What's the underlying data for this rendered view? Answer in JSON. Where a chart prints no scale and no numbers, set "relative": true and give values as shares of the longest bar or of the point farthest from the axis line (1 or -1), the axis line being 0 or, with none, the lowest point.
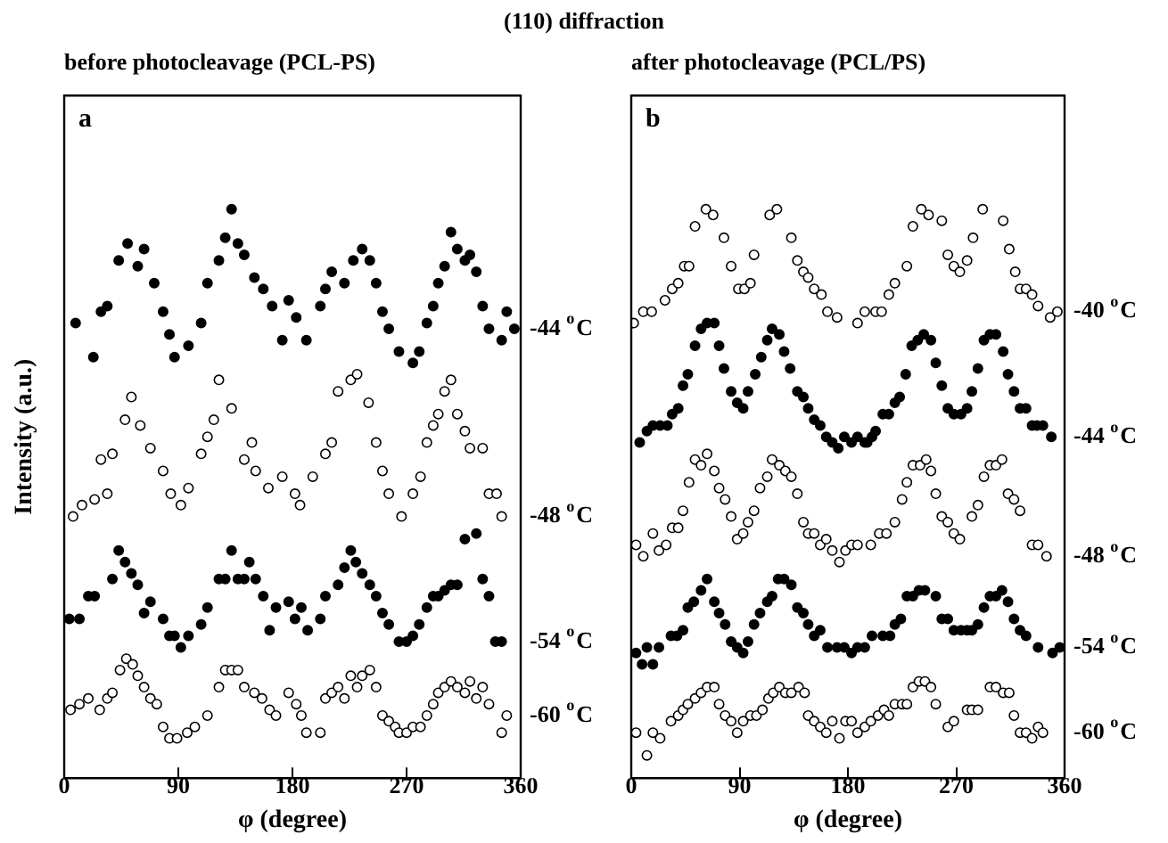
{
  "chart_data": [
    {
      "type": "scatter",
      "title": "(110) diffraction",
      "subtitle": "before photocleavage (PCL-PS)",
      "xlabel": "φ (degree)",
      "ylabel": "Intensity (a.u.)",
      "annotations": [
        "a"
      ],
      "relative": true,
      "xlim": [
        0,
        360
      ],
      "xticks": [
        0,
        90,
        180,
        270,
        360
      ],
      "series": [
        {
          "name": "-44 $^{o}$C",
          "color": "#000000",
          "marker": "circle",
          "x": [
            9,
            23,
            29,
            34,
            43,
            50,
            58,
            63,
            71,
            78,
            83,
            87,
            98,
            108,
            113,
            122,
            127,
            132,
            137,
            142,
            150,
            157,
            164,
            172,
            177,
            183,
            191,
            202,
            206,
            211,
            221,
            228,
            235,
            241,
            246,
            251,
            256,
            264,
            275,
            280,
            286,
            291,
            295,
            300,
            305,
            310,
            316,
            320,
            325,
            330,
            335,
            345,
            349,
            355
          ],
          "values": [
            0.8,
            0.74,
            0.82,
            0.83,
            0.91,
            0.94,
            0.9,
            0.93,
            0.87,
            0.82,
            0.78,
            0.74,
            0.76,
            0.8,
            0.87,
            0.91,
            0.95,
            1.0,
            0.94,
            0.92,
            0.88,
            0.86,
            0.83,
            0.77,
            0.84,
            0.81,
            0.77,
            0.83,
            0.86,
            0.89,
            0.87,
            0.91,
            0.93,
            0.91,
            0.87,
            0.82,
            0.79,
            0.75,
            0.73,
            0.75,
            0.8,
            0.83,
            0.87,
            0.9,
            0.96,
            0.93,
            0.91,
            0.92,
            0.89,
            0.83,
            0.79,
            0.77,
            0.82,
            0.79
          ]
        },
        {
          "name": "-48 $^{o}$C",
          "color": "#000000",
          "marker": "circle-open",
          "x": [
            7,
            14,
            24,
            29,
            34,
            38,
            48,
            53,
            60,
            68,
            78,
            84,
            92,
            98,
            108,
            113,
            118,
            122,
            132,
            142,
            148,
            151,
            161,
            172,
            182,
            186,
            196,
            206,
            211,
            216,
            226,
            231,
            240,
            246,
            251,
            256,
            266,
            275,
            281,
            286,
            291,
            295,
            300,
            305,
            310,
            316,
            320,
            330,
            335,
            341,
            345
          ],
          "values": [
            0.46,
            0.48,
            0.49,
            0.56,
            0.5,
            0.57,
            0.63,
            0.67,
            0.62,
            0.58,
            0.54,
            0.5,
            0.48,
            0.51,
            0.57,
            0.6,
            0.63,
            0.7,
            0.65,
            0.56,
            0.59,
            0.54,
            0.51,
            0.53,
            0.5,
            0.48,
            0.53,
            0.57,
            0.59,
            0.68,
            0.7,
            0.71,
            0.66,
            0.59,
            0.54,
            0.5,
            0.46,
            0.5,
            0.53,
            0.59,
            0.62,
            0.64,
            0.68,
            0.7,
            0.64,
            0.61,
            0.58,
            0.58,
            0.5,
            0.5,
            0.46
          ]
        },
        {
          "name": "-54 $^{o}$C",
          "color": "#000000",
          "marker": "circle",
          "x": [
            4,
            12,
            19,
            24,
            38,
            43,
            48,
            53,
            58,
            63,
            68,
            78,
            83,
            87,
            92,
            98,
            108,
            113,
            122,
            127,
            132,
            137,
            142,
            146,
            151,
            157,
            162,
            167,
            177,
            182,
            187,
            192,
            202,
            206,
            216,
            221,
            226,
            230,
            235,
            241,
            246,
            251,
            256,
            264,
            270,
            275,
            280,
            286,
            291,
            295,
            300,
            305,
            310,
            316,
            325,
            330,
            335,
            340,
            345
          ],
          "values": [
            0.28,
            0.28,
            0.32,
            0.32,
            0.35,
            0.4,
            0.38,
            0.36,
            0.34,
            0.29,
            0.31,
            0.28,
            0.25,
            0.25,
            0.23,
            0.25,
            0.27,
            0.3,
            0.35,
            0.35,
            0.4,
            0.35,
            0.35,
            0.38,
            0.35,
            0.32,
            0.26,
            0.3,
            0.31,
            0.28,
            0.3,
            0.26,
            0.28,
            0.32,
            0.34,
            0.37,
            0.4,
            0.38,
            0.36,
            0.34,
            0.32,
            0.29,
            0.27,
            0.24,
            0.24,
            0.25,
            0.27,
            0.3,
            0.32,
            0.32,
            0.33,
            0.34,
            0.34,
            0.42,
            0.43,
            0.35,
            0.32,
            0.24,
            0.24
          ]
        },
        {
          "name": "-60 $^{o}$C",
          "color": "#000000",
          "marker": "circle-open",
          "x": [
            5,
            12,
            19,
            28,
            34,
            38,
            44,
            49,
            54,
            58,
            63,
            68,
            73,
            78,
            83,
            89,
            97,
            103,
            113,
            122,
            127,
            132,
            137,
            142,
            150,
            156,
            162,
            167,
            177,
            183,
            187,
            191,
            202,
            206,
            211,
            216,
            221,
            226,
            231,
            235,
            241,
            246,
            251,
            256,
            261,
            264,
            270,
            275,
            281,
            286,
            291,
            295,
            300,
            305,
            310,
            316,
            320,
            325,
            330,
            335,
            345,
            349
          ],
          "values": [
            0.12,
            0.13,
            0.14,
            0.12,
            0.14,
            0.15,
            0.19,
            0.21,
            0.2,
            0.18,
            0.16,
            0.14,
            0.13,
            0.09,
            0.07,
            0.07,
            0.08,
            0.09,
            0.11,
            0.16,
            0.19,
            0.19,
            0.19,
            0.16,
            0.15,
            0.14,
            0.12,
            0.11,
            0.15,
            0.13,
            0.11,
            0.08,
            0.08,
            0.14,
            0.15,
            0.16,
            0.14,
            0.18,
            0.16,
            0.18,
            0.19,
            0.16,
            0.11,
            0.1,
            0.09,
            0.08,
            0.08,
            0.09,
            0.09,
            0.11,
            0.13,
            0.15,
            0.16,
            0.17,
            0.16,
            0.15,
            0.17,
            0.14,
            0.16,
            0.13,
            0.08,
            0.11
          ]
        }
      ]
    },
    {
      "type": "scatter",
      "subtitle": "after photocleavage (PCL/PS)",
      "xlabel": "φ (degree)",
      "annotations": [
        "b"
      ],
      "relative": true,
      "xlim": [
        0,
        360
      ],
      "xticks": [
        0,
        90,
        180,
        270,
        360
      ],
      "series": [
        {
          "name": "-40 $^{o}$C",
          "color": "#000000",
          "marker": "circle-open",
          "x": [
            2,
            10,
            17,
            28,
            34,
            39,
            44,
            48,
            53,
            62,
            68,
            77,
            83,
            89,
            94,
            99,
            102,
            115,
            121,
            133,
            138,
            143,
            147,
            152,
            158,
            163,
            171,
            188,
            194,
            203,
            208,
            214,
            219,
            229,
            234,
            241,
            247,
            258,
            263,
            268,
            273,
            279,
            284,
            292,
            309,
            314,
            319,
            323,
            328,
            333,
            338,
            348,
            354
          ],
          "values": [
            0.8,
            0.82,
            0.82,
            0.84,
            0.86,
            0.87,
            0.9,
            0.9,
            0.97,
            1.0,
            0.99,
            0.95,
            0.9,
            0.86,
            0.86,
            0.87,
            0.92,
            0.99,
            1.0,
            0.95,
            0.91,
            0.89,
            0.88,
            0.86,
            0.85,
            0.82,
            0.81,
            0.8,
            0.82,
            0.82,
            0.82,
            0.85,
            0.87,
            0.9,
            0.97,
            1.0,
            0.99,
            0.98,
            0.92,
            0.9,
            0.89,
            0.91,
            0.95,
            1.0,
            0.98,
            0.93,
            0.89,
            0.86,
            0.86,
            0.85,
            0.83,
            0.81,
            0.82
          ]
        },
        {
          "name": "-44 $^{o}$C",
          "color": "#000000",
          "marker": "circle",
          "x": [
            7,
            13,
            18,
            24,
            30,
            34,
            39,
            43,
            47,
            53,
            58,
            63,
            69,
            73,
            77,
            83,
            88,
            93,
            97,
            103,
            108,
            113,
            117,
            123,
            127,
            132,
            138,
            143,
            147,
            152,
            157,
            162,
            167,
            172,
            177,
            183,
            188,
            194,
            196,
            200,
            203,
            209,
            214,
            219,
            223,
            228,
            233,
            238,
            243,
            249,
            253,
            258,
            263,
            268,
            274,
            279,
            283,
            288,
            293,
            298,
            303,
            309,
            313,
            318,
            323,
            328,
            333,
            337,
            342,
            349
          ],
          "values": [
            0.59,
            0.61,
            0.62,
            0.62,
            0.62,
            0.64,
            0.65,
            0.69,
            0.71,
            0.76,
            0.79,
            0.8,
            0.8,
            0.76,
            0.72,
            0.68,
            0.66,
            0.65,
            0.68,
            0.71,
            0.74,
            0.77,
            0.79,
            0.78,
            0.75,
            0.72,
            0.68,
            0.67,
            0.65,
            0.63,
            0.62,
            0.6,
            0.59,
            0.58,
            0.6,
            0.59,
            0.6,
            0.59,
            0.59,
            0.6,
            0.61,
            0.64,
            0.64,
            0.66,
            0.67,
            0.71,
            0.76,
            0.77,
            0.78,
            0.77,
            0.73,
            0.69,
            0.65,
            0.64,
            0.64,
            0.65,
            0.68,
            0.72,
            0.77,
            0.78,
            0.78,
            0.75,
            0.71,
            0.68,
            0.65,
            0.65,
            0.62,
            0.62,
            0.62,
            0.6
          ]
        },
        {
          "name": "-48 $^{o}$C",
          "color": "#000000",
          "marker": "circle-open",
          "x": [
            4,
            10,
            18,
            23,
            29,
            34,
            39,
            43,
            48,
            53,
            58,
            63,
            69,
            73,
            78,
            83,
            88,
            93,
            97,
            102,
            107,
            113,
            117,
            123,
            128,
            133,
            138,
            143,
            147,
            152,
            157,
            162,
            167,
            173,
            178,
            183,
            188,
            199,
            206,
            212,
            219,
            225,
            229,
            234,
            240,
            245,
            249,
            253,
            258,
            263,
            268,
            273,
            283,
            288,
            293,
            298,
            303,
            308,
            313,
            318,
            323,
            333,
            338,
            345
          ],
          "values": [
            0.41,
            0.39,
            0.43,
            0.4,
            0.41,
            0.44,
            0.44,
            0.47,
            0.52,
            0.56,
            0.55,
            0.57,
            0.54,
            0.51,
            0.49,
            0.46,
            0.42,
            0.43,
            0.45,
            0.47,
            0.51,
            0.53,
            0.56,
            0.55,
            0.54,
            0.53,
            0.5,
            0.45,
            0.43,
            0.43,
            0.41,
            0.42,
            0.4,
            0.38,
            0.4,
            0.41,
            0.41,
            0.41,
            0.43,
            0.43,
            0.45,
            0.49,
            0.52,
            0.55,
            0.55,
            0.56,
            0.54,
            0.5,
            0.46,
            0.45,
            0.43,
            0.42,
            0.46,
            0.48,
            0.53,
            0.55,
            0.55,
            0.56,
            0.5,
            0.49,
            0.47,
            0.41,
            0.41,
            0.39
          ]
        },
        {
          "name": "-54 $^{o}$C",
          "color": "#000000",
          "marker": "circle",
          "x": [
            4,
            9,
            13,
            18,
            23,
            33,
            38,
            43,
            47,
            52,
            58,
            63,
            69,
            73,
            78,
            83,
            88,
            93,
            97,
            102,
            107,
            113,
            117,
            122,
            127,
            133,
            138,
            143,
            147,
            152,
            157,
            163,
            171,
            177,
            183,
            188,
            194,
            200,
            209,
            215,
            219,
            224,
            229,
            234,
            239,
            244,
            253,
            258,
            263,
            268,
            274,
            279,
            283,
            288,
            293,
            298,
            303,
            308,
            313,
            318,
            323,
            328,
            338,
            350,
            356
          ],
          "values": [
            0.22,
            0.2,
            0.23,
            0.2,
            0.23,
            0.25,
            0.25,
            0.26,
            0.3,
            0.31,
            0.33,
            0.35,
            0.31,
            0.29,
            0.27,
            0.24,
            0.23,
            0.22,
            0.24,
            0.27,
            0.29,
            0.31,
            0.32,
            0.35,
            0.35,
            0.34,
            0.3,
            0.29,
            0.27,
            0.25,
            0.26,
            0.23,
            0.23,
            0.23,
            0.22,
            0.23,
            0.23,
            0.25,
            0.25,
            0.25,
            0.27,
            0.28,
            0.32,
            0.32,
            0.33,
            0.33,
            0.32,
            0.28,
            0.28,
            0.26,
            0.26,
            0.26,
            0.26,
            0.27,
            0.3,
            0.32,
            0.32,
            0.33,
            0.31,
            0.28,
            0.26,
            0.25,
            0.23,
            0.22,
            0.23
          ]
        },
        {
          "name": "-60 $^{o}$C",
          "color": "#000000",
          "marker": "circle-open",
          "x": [
            4,
            13,
            18,
            24,
            33,
            39,
            43,
            47,
            53,
            58,
            63,
            69,
            73,
            78,
            83,
            88,
            93,
            99,
            104,
            109,
            114,
            118,
            123,
            128,
            133,
            139,
            144,
            147,
            152,
            157,
            162,
            167,
            173,
            178,
            183,
            188,
            194,
            199,
            205,
            210,
            214,
            219,
            225,
            229,
            234,
            239,
            244,
            249,
            253,
            263,
            268,
            279,
            283,
            288,
            298,
            303,
            309,
            314,
            318,
            323,
            328,
            333,
            338,
            342
          ],
          "values": [
            0.08,
            0.04,
            0.08,
            0.07,
            0.1,
            0.11,
            0.12,
            0.13,
            0.14,
            0.15,
            0.16,
            0.16,
            0.13,
            0.11,
            0.1,
            0.08,
            0.1,
            0.11,
            0.11,
            0.12,
            0.14,
            0.15,
            0.16,
            0.15,
            0.15,
            0.16,
            0.15,
            0.11,
            0.1,
            0.09,
            0.08,
            0.1,
            0.07,
            0.1,
            0.1,
            0.08,
            0.09,
            0.1,
            0.11,
            0.12,
            0.11,
            0.13,
            0.13,
            0.13,
            0.16,
            0.17,
            0.17,
            0.16,
            0.13,
            0.09,
            0.1,
            0.12,
            0.12,
            0.12,
            0.16,
            0.16,
            0.15,
            0.15,
            0.11,
            0.08,
            0.08,
            0.07,
            0.09,
            0.08
          ]
        }
      ]
    }
  ]
}
